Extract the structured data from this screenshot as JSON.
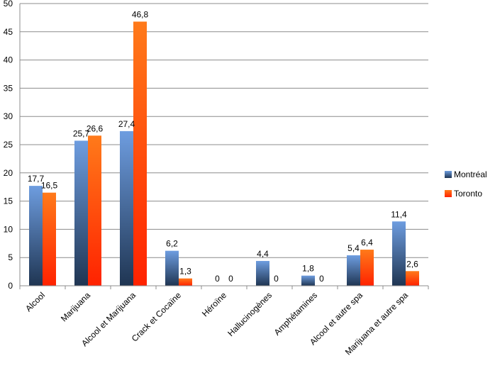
{
  "chart_data": {
    "type": "bar",
    "categories": [
      "Alcool",
      "Marijuana",
      "Alcool et Marijuana",
      "Crack et Cocaïne",
      "Héroïne",
      "Hallucinogènes",
      "Amphétamines",
      "Alcool et autre spa",
      "Marijuana et autre spa"
    ],
    "series": [
      {
        "name": "Montréal",
        "values": [
          17.7,
          25.7,
          27.4,
          6.2,
          0,
          4.4,
          1.8,
          5.4,
          11.4
        ],
        "labels": [
          "17,7",
          "25,7",
          "27,4",
          "6,2",
          "0",
          "4,4",
          "1,8",
          "5,4",
          "11,4"
        ],
        "color_top": "#6E9DE0",
        "color_bottom": "#1F3552"
      },
      {
        "name": "Toronto",
        "values": [
          16.5,
          26.6,
          46.8,
          1.3,
          0,
          0,
          0,
          6.4,
          2.6
        ],
        "labels": [
          "16,5",
          "26,6",
          "46,8",
          "1,3",
          "0",
          "0",
          "0",
          "6,4",
          "2,6"
        ],
        "color_top": "#FF7A1A",
        "color_bottom": "#FF2200"
      }
    ],
    "ylim": [
      0,
      50
    ],
    "yticks": [
      "0",
      "5",
      "10",
      "15",
      "20",
      "25",
      "30",
      "35",
      "40",
      "45",
      "50"
    ],
    "grid": true,
    "legend": "right"
  }
}
